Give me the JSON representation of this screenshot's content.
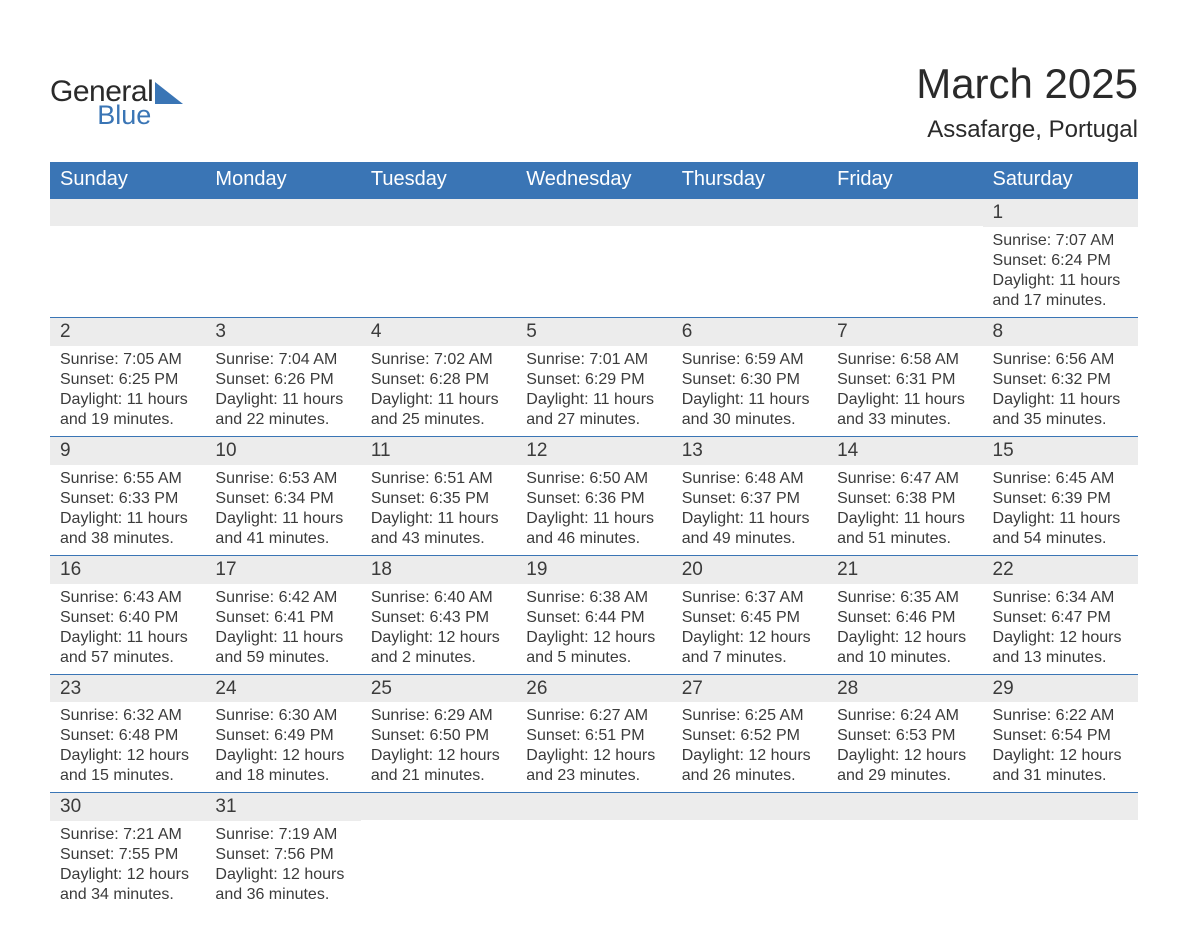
{
  "logo": {
    "general": "General",
    "blue": "Blue",
    "triangle_color": "#3a75b5"
  },
  "title": "March 2025",
  "location": "Assafarge, Portugal",
  "colors": {
    "header_bg": "#3a75b5",
    "header_text": "#ffffff",
    "daynum_bg": "#ececec",
    "row_border": "#3a75b5",
    "text": "#3b3b3b",
    "page_bg": "#ffffff"
  },
  "weekdays": [
    "Sunday",
    "Monday",
    "Tuesday",
    "Wednesday",
    "Thursday",
    "Friday",
    "Saturday"
  ],
  "weeks": [
    [
      null,
      null,
      null,
      null,
      null,
      null,
      {
        "n": "1",
        "sr": "Sunrise: 7:07 AM",
        "ss": "Sunset: 6:24 PM",
        "d1": "Daylight: 11 hours",
        "d2": "and 17 minutes."
      }
    ],
    [
      {
        "n": "2",
        "sr": "Sunrise: 7:05 AM",
        "ss": "Sunset: 6:25 PM",
        "d1": "Daylight: 11 hours",
        "d2": "and 19 minutes."
      },
      {
        "n": "3",
        "sr": "Sunrise: 7:04 AM",
        "ss": "Sunset: 6:26 PM",
        "d1": "Daylight: 11 hours",
        "d2": "and 22 minutes."
      },
      {
        "n": "4",
        "sr": "Sunrise: 7:02 AM",
        "ss": "Sunset: 6:28 PM",
        "d1": "Daylight: 11 hours",
        "d2": "and 25 minutes."
      },
      {
        "n": "5",
        "sr": "Sunrise: 7:01 AM",
        "ss": "Sunset: 6:29 PM",
        "d1": "Daylight: 11 hours",
        "d2": "and 27 minutes."
      },
      {
        "n": "6",
        "sr": "Sunrise: 6:59 AM",
        "ss": "Sunset: 6:30 PM",
        "d1": "Daylight: 11 hours",
        "d2": "and 30 minutes."
      },
      {
        "n": "7",
        "sr": "Sunrise: 6:58 AM",
        "ss": "Sunset: 6:31 PM",
        "d1": "Daylight: 11 hours",
        "d2": "and 33 minutes."
      },
      {
        "n": "8",
        "sr": "Sunrise: 6:56 AM",
        "ss": "Sunset: 6:32 PM",
        "d1": "Daylight: 11 hours",
        "d2": "and 35 minutes."
      }
    ],
    [
      {
        "n": "9",
        "sr": "Sunrise: 6:55 AM",
        "ss": "Sunset: 6:33 PM",
        "d1": "Daylight: 11 hours",
        "d2": "and 38 minutes."
      },
      {
        "n": "10",
        "sr": "Sunrise: 6:53 AM",
        "ss": "Sunset: 6:34 PM",
        "d1": "Daylight: 11 hours",
        "d2": "and 41 minutes."
      },
      {
        "n": "11",
        "sr": "Sunrise: 6:51 AM",
        "ss": "Sunset: 6:35 PM",
        "d1": "Daylight: 11 hours",
        "d2": "and 43 minutes."
      },
      {
        "n": "12",
        "sr": "Sunrise: 6:50 AM",
        "ss": "Sunset: 6:36 PM",
        "d1": "Daylight: 11 hours",
        "d2": "and 46 minutes."
      },
      {
        "n": "13",
        "sr": "Sunrise: 6:48 AM",
        "ss": "Sunset: 6:37 PM",
        "d1": "Daylight: 11 hours",
        "d2": "and 49 minutes."
      },
      {
        "n": "14",
        "sr": "Sunrise: 6:47 AM",
        "ss": "Sunset: 6:38 PM",
        "d1": "Daylight: 11 hours",
        "d2": "and 51 minutes."
      },
      {
        "n": "15",
        "sr": "Sunrise: 6:45 AM",
        "ss": "Sunset: 6:39 PM",
        "d1": "Daylight: 11 hours",
        "d2": "and 54 minutes."
      }
    ],
    [
      {
        "n": "16",
        "sr": "Sunrise: 6:43 AM",
        "ss": "Sunset: 6:40 PM",
        "d1": "Daylight: 11 hours",
        "d2": "and 57 minutes."
      },
      {
        "n": "17",
        "sr": "Sunrise: 6:42 AM",
        "ss": "Sunset: 6:41 PM",
        "d1": "Daylight: 11 hours",
        "d2": "and 59 minutes."
      },
      {
        "n": "18",
        "sr": "Sunrise: 6:40 AM",
        "ss": "Sunset: 6:43 PM",
        "d1": "Daylight: 12 hours",
        "d2": "and 2 minutes."
      },
      {
        "n": "19",
        "sr": "Sunrise: 6:38 AM",
        "ss": "Sunset: 6:44 PM",
        "d1": "Daylight: 12 hours",
        "d2": "and 5 minutes."
      },
      {
        "n": "20",
        "sr": "Sunrise: 6:37 AM",
        "ss": "Sunset: 6:45 PM",
        "d1": "Daylight: 12 hours",
        "d2": "and 7 minutes."
      },
      {
        "n": "21",
        "sr": "Sunrise: 6:35 AM",
        "ss": "Sunset: 6:46 PM",
        "d1": "Daylight: 12 hours",
        "d2": "and 10 minutes."
      },
      {
        "n": "22",
        "sr": "Sunrise: 6:34 AM",
        "ss": "Sunset: 6:47 PM",
        "d1": "Daylight: 12 hours",
        "d2": "and 13 minutes."
      }
    ],
    [
      {
        "n": "23",
        "sr": "Sunrise: 6:32 AM",
        "ss": "Sunset: 6:48 PM",
        "d1": "Daylight: 12 hours",
        "d2": "and 15 minutes."
      },
      {
        "n": "24",
        "sr": "Sunrise: 6:30 AM",
        "ss": "Sunset: 6:49 PM",
        "d1": "Daylight: 12 hours",
        "d2": "and 18 minutes."
      },
      {
        "n": "25",
        "sr": "Sunrise: 6:29 AM",
        "ss": "Sunset: 6:50 PM",
        "d1": "Daylight: 12 hours",
        "d2": "and 21 minutes."
      },
      {
        "n": "26",
        "sr": "Sunrise: 6:27 AM",
        "ss": "Sunset: 6:51 PM",
        "d1": "Daylight: 12 hours",
        "d2": "and 23 minutes."
      },
      {
        "n": "27",
        "sr": "Sunrise: 6:25 AM",
        "ss": "Sunset: 6:52 PM",
        "d1": "Daylight: 12 hours",
        "d2": "and 26 minutes."
      },
      {
        "n": "28",
        "sr": "Sunrise: 6:24 AM",
        "ss": "Sunset: 6:53 PM",
        "d1": "Daylight: 12 hours",
        "d2": "and 29 minutes."
      },
      {
        "n": "29",
        "sr": "Sunrise: 6:22 AM",
        "ss": "Sunset: 6:54 PM",
        "d1": "Daylight: 12 hours",
        "d2": "and 31 minutes."
      }
    ],
    [
      {
        "n": "30",
        "sr": "Sunrise: 7:21 AM",
        "ss": "Sunset: 7:55 PM",
        "d1": "Daylight: 12 hours",
        "d2": "and 34 minutes."
      },
      {
        "n": "31",
        "sr": "Sunrise: 7:19 AM",
        "ss": "Sunset: 7:56 PM",
        "d1": "Daylight: 12 hours",
        "d2": "and 36 minutes."
      },
      null,
      null,
      null,
      null,
      null
    ]
  ]
}
